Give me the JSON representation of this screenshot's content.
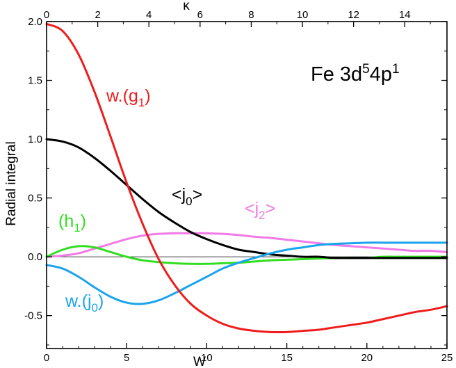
{
  "chart_data": {
    "type": "line",
    "title": "",
    "annotation": {
      "base": "Fe 3d",
      "sup1": "5",
      "mid": "4p",
      "sup2": "1"
    },
    "xlabel": "W",
    "x2label": "κ",
    "ylabel": "Radial integral",
    "xlim": [
      0,
      25
    ],
    "x2lim": [
      0,
      15.65
    ],
    "ylim": [
      -0.78,
      2.0
    ],
    "x_ticks": [
      "0",
      "5",
      "10",
      "15",
      "20",
      "25"
    ],
    "x2_ticks": [
      "0",
      "2",
      "4",
      "6",
      "8",
      "10",
      "12",
      "14"
    ],
    "y_ticks": [
      "-0.5",
      "0.0",
      "0.5",
      "1.0",
      "1.5",
      "2.0"
    ],
    "zero_line": true,
    "series": [
      {
        "label_base": "w.(g",
        "label_sub": "1",
        "label_tail": ")",
        "color": "#ee1c1c",
        "x": [
          0,
          1,
          2,
          3,
          4,
          5,
          6,
          7,
          8,
          9,
          10,
          11,
          12,
          13,
          14,
          15,
          16,
          17,
          18,
          19,
          20,
          21,
          22,
          23,
          24,
          25
        ],
        "y": [
          1.98,
          1.92,
          1.72,
          1.4,
          1.02,
          0.63,
          0.28,
          -0.02,
          -0.24,
          -0.4,
          -0.5,
          -0.57,
          -0.61,
          -0.63,
          -0.64,
          -0.64,
          -0.63,
          -0.62,
          -0.6,
          -0.58,
          -0.56,
          -0.53,
          -0.5,
          -0.47,
          -0.45,
          -0.42
        ]
      },
      {
        "label_base": "<j",
        "label_sub": "0",
        "label_tail": ">",
        "color": "#000000",
        "x": [
          0,
          1,
          2,
          3,
          4,
          5,
          6,
          7,
          8,
          9,
          10,
          11,
          12,
          13,
          14,
          15,
          16,
          17,
          18,
          19,
          20,
          21,
          22,
          23,
          24,
          25
        ],
        "y": [
          1.0,
          0.98,
          0.93,
          0.84,
          0.73,
          0.61,
          0.49,
          0.38,
          0.29,
          0.21,
          0.15,
          0.1,
          0.06,
          0.04,
          0.02,
          0.01,
          0.0,
          0.0,
          -0.01,
          -0.01,
          -0.01,
          -0.01,
          -0.01,
          -0.01,
          -0.01,
          -0.01
        ]
      },
      {
        "label_base": "<j",
        "label_sub": "2",
        "label_tail": ">",
        "color": "#f07ae6",
        "x": [
          0,
          1,
          2,
          3,
          4,
          5,
          6,
          7,
          8,
          9,
          10,
          11,
          12,
          13,
          14,
          15,
          16,
          17,
          18,
          19,
          20,
          21,
          22,
          23,
          24,
          25
        ],
        "y": [
          0.0,
          0.01,
          0.03,
          0.07,
          0.11,
          0.15,
          0.18,
          0.195,
          0.2,
          0.2,
          0.2,
          0.195,
          0.185,
          0.17,
          0.16,
          0.145,
          0.13,
          0.115,
          0.1,
          0.09,
          0.08,
          0.07,
          0.06,
          0.05,
          0.05,
          0.04
        ]
      },
      {
        "label_base": "(h",
        "label_sub": "1",
        "label_tail": ")",
        "color": "#33dd22",
        "x": [
          0,
          1,
          2,
          3,
          4,
          5,
          6,
          7,
          8,
          9,
          10,
          11,
          12,
          13,
          14,
          15,
          16,
          17,
          18,
          19,
          20,
          21,
          22,
          23,
          24,
          25
        ],
        "y": [
          0.0,
          0.06,
          0.09,
          0.08,
          0.04,
          0.0,
          -0.03,
          -0.045,
          -0.055,
          -0.06,
          -0.06,
          -0.055,
          -0.05,
          -0.04,
          -0.03,
          -0.025,
          -0.02,
          -0.015,
          -0.01,
          -0.01,
          -0.01,
          0.0,
          0.0,
          0.0,
          0.0,
          0.0
        ]
      },
      {
        "label_base": "w.(j",
        "label_sub": "0",
        "label_tail": ")",
        "color": "#1ba4ec",
        "x": [
          0,
          1,
          2,
          3,
          4,
          5,
          6,
          7,
          8,
          9,
          10,
          11,
          12,
          13,
          14,
          15,
          16,
          17,
          18,
          19,
          20,
          21,
          22,
          23,
          24,
          25
        ],
        "y": [
          -0.07,
          -0.1,
          -0.17,
          -0.26,
          -0.34,
          -0.39,
          -0.4,
          -0.37,
          -0.31,
          -0.24,
          -0.17,
          -0.1,
          -0.05,
          -0.01,
          0.03,
          0.06,
          0.08,
          0.1,
          0.11,
          0.115,
          0.12,
          0.12,
          0.12,
          0.12,
          0.12,
          0.12
        ]
      }
    ]
  }
}
